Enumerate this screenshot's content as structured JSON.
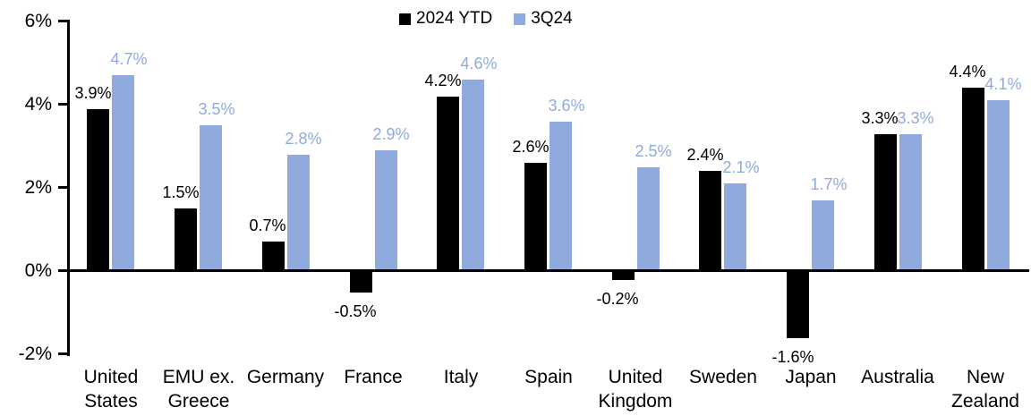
{
  "chart_data": {
    "type": "bar",
    "title": "",
    "categories": [
      "United\nStates",
      "EMU ex.\nGreece",
      "Germany",
      "France",
      "Italy",
      "Spain",
      "United\nKingdom",
      "Sweden",
      "Japan",
      "Australia",
      "New\nZealand"
    ],
    "series": [
      {
        "name": "2024 YTD",
        "color": "#000000",
        "values": [
          3.9,
          1.5,
          0.7,
          -0.5,
          4.2,
          2.6,
          -0.2,
          2.4,
          -1.6,
          3.3,
          4.4
        ],
        "labels": [
          "3.9%",
          "1.5%",
          "0.7%",
          "-0.5%",
          "4.2%",
          "2.6%",
          "-0.2%",
          "2.4%",
          "-1.6%",
          "3.3%",
          "4.4%"
        ]
      },
      {
        "name": "3Q24",
        "color": "#8FAADC",
        "values": [
          4.7,
          3.5,
          2.8,
          2.9,
          4.6,
          3.6,
          2.5,
          2.1,
          1.7,
          3.3,
          4.1
        ],
        "labels": [
          "4.7%",
          "3.5%",
          "2.8%",
          "2.9%",
          "4.6%",
          "3.6%",
          "2.5%",
          "2.1%",
          "1.7%",
          "3.3%",
          "4.1%"
        ]
      }
    ],
    "y_axis": {
      "unit": "%",
      "min": -2,
      "max": 6,
      "tick_values": [
        6,
        4,
        2,
        0,
        -2
      ],
      "tick_labels": [
        "6%",
        "4%",
        "2%",
        "0%",
        "-2%"
      ]
    },
    "legend": {
      "position": "top",
      "entries": [
        "2024 YTD",
        "3Q24"
      ]
    },
    "grid": false,
    "background": "#FFFFFF",
    "axis_color": "#000000"
  }
}
